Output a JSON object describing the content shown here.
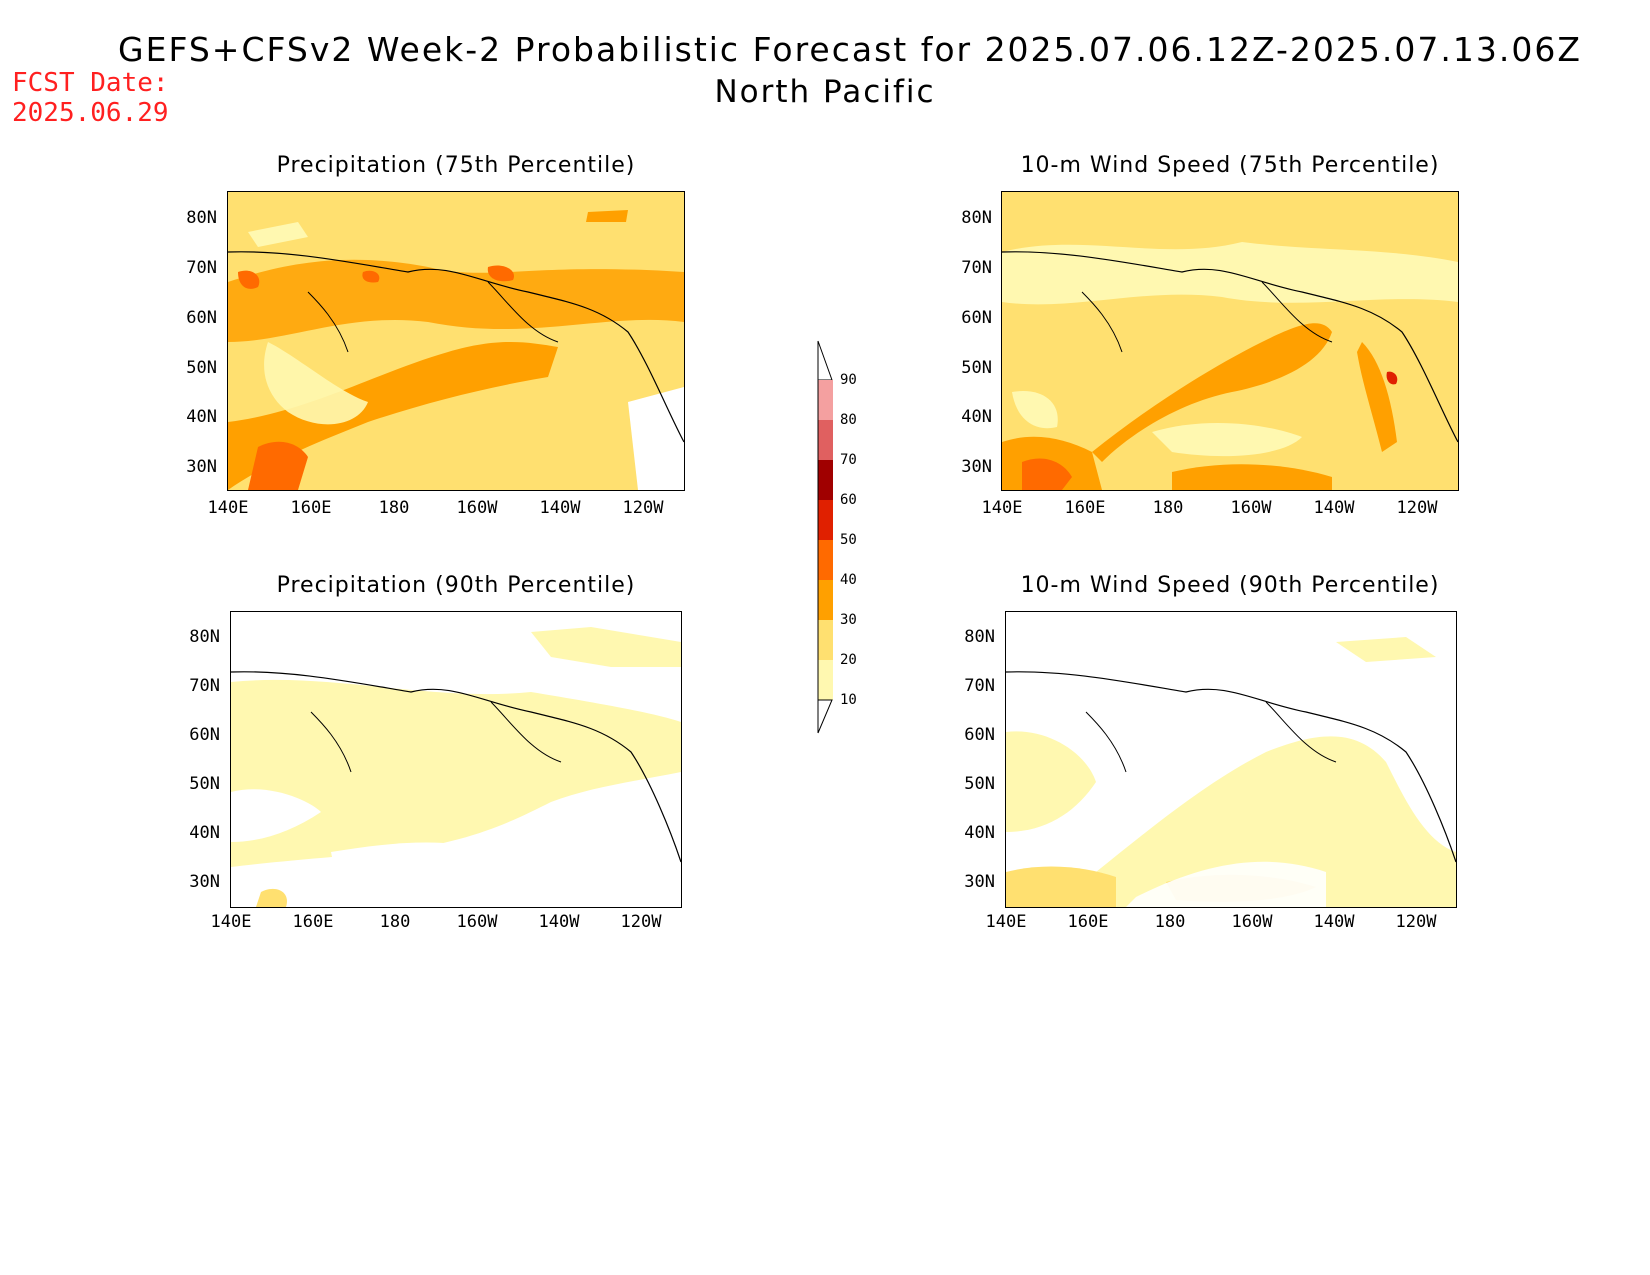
{
  "header": {
    "title": "GEFS+CFSv2 Week-2 Probabilistic Forecast for 2025.07.06.12Z-2025.07.13.06Z",
    "subtitle": "North Pacific",
    "fcst_label": "FCST Date:",
    "fcst_date": "2025.06.29"
  },
  "panels": [
    {
      "id": "precip75",
      "title": "Precipitation (75th Percentile)"
    },
    {
      "id": "wind75",
      "title": "10-m Wind Speed (75th Percentile)"
    },
    {
      "id": "precip90",
      "title": "Precipitation (90th Percentile)"
    },
    {
      "id": "wind90",
      "title": "10-m Wind Speed (90th Percentile)"
    }
  ],
  "axes": {
    "lat_labels": [
      "80N",
      "70N",
      "60N",
      "50N",
      "40N",
      "30N"
    ],
    "lon_labels": [
      "140E",
      "160E",
      "180",
      "160W",
      "140W",
      "120W"
    ]
  },
  "colorbar": {
    "labels": [
      "90",
      "80",
      "70",
      "60",
      "50",
      "40",
      "30",
      "20",
      "10"
    ],
    "colors": [
      "#ffe6e6",
      "#f4a0a0",
      "#e06060",
      "#a00000",
      "#e02000",
      "#ff6a00",
      "#ffa000",
      "#ffe070",
      "#fff8b0"
    ]
  }
}
